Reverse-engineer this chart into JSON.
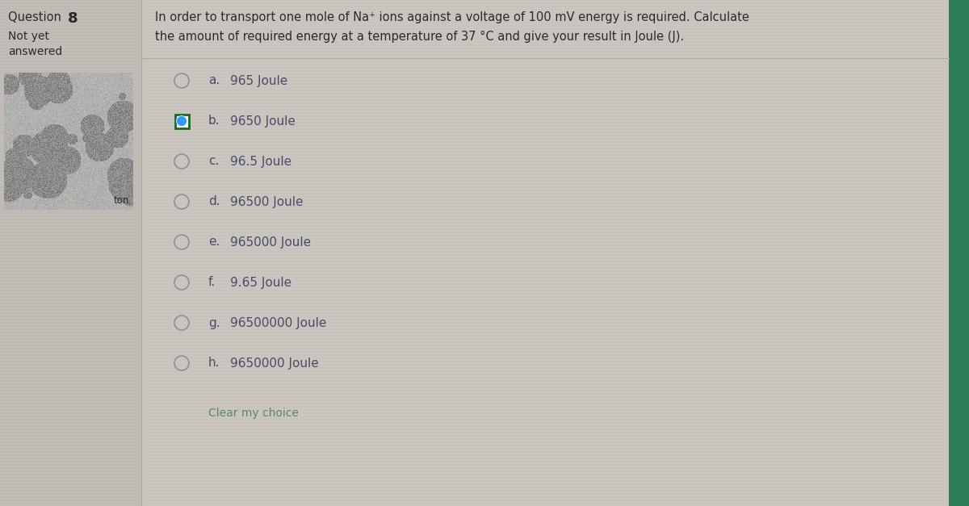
{
  "question_number": "8",
  "status_line1": "Not yet",
  "status_line2": "answered",
  "question_text_line1": "In order to transport one mole of Na⁺ ions against a voltage of 100 mV energy is required. Calculate",
  "question_text_line2": "the amount of required energy at a temperature of 37 °C and give your result in Joule (J).",
  "options": [
    {
      "label": "a.",
      "text": "965 Joule",
      "selected": false
    },
    {
      "label": "b.",
      "text": "9650 Joule",
      "selected": true
    },
    {
      "label": "c.",
      "text": "96.5 Joule",
      "selected": false
    },
    {
      "label": "d.",
      "text": "96500 Joule",
      "selected": false
    },
    {
      "label": "e.",
      "text": "965000 Joule",
      "selected": false
    },
    {
      "label": "f.",
      "text": "9.65 Joule",
      "selected": false
    },
    {
      "label": "g.",
      "text": "96500000 Joule",
      "selected": false
    },
    {
      "label": "h.",
      "text": "9650000 Joule",
      "selected": false
    }
  ],
  "clear_text": "Clear my choice",
  "bg_color": "#cbc7c0",
  "left_panel_bg": "#c2beb7",
  "right_bar_color": "#2e7d5a",
  "text_dark": "#2a2a2a",
  "text_medium": "#4a4a4a",
  "option_text_color": "#4a4a6a",
  "clear_color": "#5a8a5a",
  "selected_border_color": "#1a6a1a",
  "selected_fill_color": "#3399ff",
  "unselected_stroke": "#909090",
  "separator_color": "#b0aca5"
}
